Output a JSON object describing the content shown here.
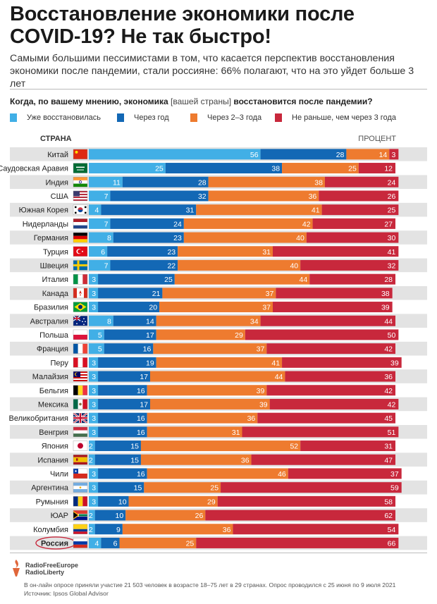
{
  "header": {
    "title_line1": "Восстановление экономики после",
    "title_line2": "COVID-19? Не так быстро!",
    "subtitle_line1": "Самыми большими пессимистами в том, что касается перспектив восстановления",
    "subtitle_line2": "экономики после пандемии, стали россияне: 66% полагают, что на это уйдет больше 3 лет"
  },
  "question": {
    "part1": "Когда, по вашему мнению, экономика ",
    "bracket": "[вашей страны]",
    "part2": " восстановится после пандемии?"
  },
  "table_headers": {
    "country": "СТРАНА",
    "percent": "ПРОЦЕНТ"
  },
  "colors": {
    "recovered": "#41afe6",
    "one_year": "#1368b5",
    "two_three": "#ee7b2f",
    "three_plus": "#c8283c",
    "row_even": "#e3e3e3",
    "row_odd": "#ffffff",
    "highlight": "#c8283c"
  },
  "chart_data": {
    "type": "bar",
    "stacked": true,
    "orientation": "horizontal",
    "xlim": [
      0,
      100
    ],
    "highlight_category": "Россия",
    "categories": [
      "Китай",
      "Саудовская Аравия",
      "Индия",
      "США",
      "Южная Корея",
      "Нидерланды",
      "Германия",
      "Турция",
      "Швеция",
      "Италия",
      "Канада",
      "Бразилия",
      "Австралия",
      "Польша",
      "Франция",
      "Перу",
      "Малайзия",
      "Бельгия",
      "Мексика",
      "Великобритания",
      "Венгрия",
      "Япония",
      "Испания",
      "Чили",
      "Аргентина",
      "Румыния",
      "ЮАР",
      "Колумбия",
      "Россия"
    ],
    "flags": [
      "china-flag-icon",
      "saudi-arabia-flag-icon",
      "india-flag-icon",
      "usa-flag-icon",
      "south-korea-flag-icon",
      "netherlands-flag-icon",
      "germany-flag-icon",
      "turkey-flag-icon",
      "sweden-flag-icon",
      "italy-flag-icon",
      "canada-flag-icon",
      "brazil-flag-icon",
      "australia-flag-icon",
      "poland-flag-icon",
      "france-flag-icon",
      "peru-flag-icon",
      "malaysia-flag-icon",
      "belgium-flag-icon",
      "mexico-flag-icon",
      "uk-flag-icon",
      "hungary-flag-icon",
      "japan-flag-icon",
      "spain-flag-icon",
      "chile-flag-icon",
      "argentina-flag-icon",
      "romania-flag-icon",
      "south-africa-flag-icon",
      "colombia-flag-icon",
      "russia-flag-icon"
    ],
    "series": [
      {
        "name": "Уже восстановилась",
        "values": [
          56,
          25,
          11,
          7,
          4,
          7,
          8,
          6,
          7,
          3,
          3,
          3,
          8,
          5,
          5,
          3,
          3,
          3,
          3,
          3,
          3,
          2,
          2,
          3,
          3,
          3,
          2,
          2,
          4
        ]
      },
      {
        "name": "Через год",
        "values": [
          28,
          38,
          28,
          32,
          31,
          24,
          23,
          23,
          22,
          25,
          21,
          20,
          14,
          17,
          16,
          19,
          17,
          16,
          17,
          16,
          16,
          15,
          15,
          16,
          15,
          10,
          10,
          9,
          6
        ]
      },
      {
        "name": "Через 2–3 года",
        "values": [
          14,
          25,
          38,
          36,
          41,
          42,
          40,
          31,
          40,
          44,
          37,
          37,
          34,
          29,
          37,
          41,
          44,
          39,
          39,
          36,
          31,
          52,
          36,
          46,
          25,
          29,
          26,
          36,
          25
        ]
      },
      {
        "name": "Не раньше, чем через 3 года",
        "values": [
          3,
          12,
          24,
          26,
          25,
          27,
          30,
          41,
          32,
          28,
          38,
          39,
          44,
          50,
          42,
          39,
          36,
          42,
          42,
          45,
          51,
          31,
          47,
          37,
          59,
          58,
          62,
          54,
          66
        ]
      }
    ]
  },
  "footer": {
    "brand_line1": "RadioFreeEurope",
    "brand_line2": "RadioLiberty",
    "note": "В он-лайн опросе приняли участие 21 503 человек в возрасте 18–75 лет в 29 странах. Опрос проводился с 25 июня по 9 июля 2021",
    "source": "Источник: Ipsos Global Advisor"
  }
}
